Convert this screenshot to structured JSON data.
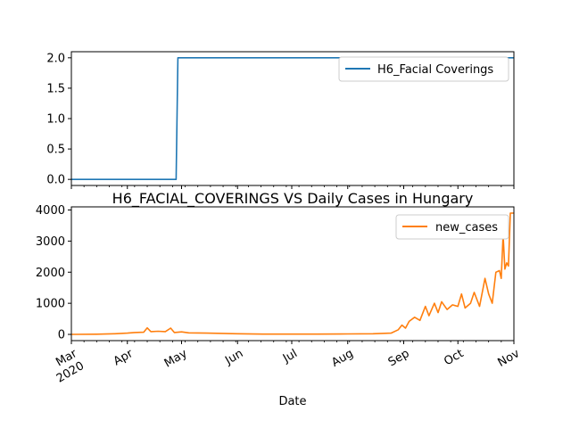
{
  "figure_title": "H6_FACIAL_COVERINGS VS Daily Cases in Hungary",
  "xlabel": "Date",
  "x_tick_labels": [
    {
      "label": "Mar",
      "sub": "2020",
      "date": "2020-03-01"
    },
    {
      "label": "Apr",
      "sub": "",
      "date": "2020-04-01"
    },
    {
      "label": "May",
      "sub": "",
      "date": "2020-05-01"
    },
    {
      "label": "Jun",
      "sub": "",
      "date": "2020-06-01"
    },
    {
      "label": "Jul",
      "sub": "",
      "date": "2020-07-01"
    },
    {
      "label": "Aug",
      "sub": "",
      "date": "2020-08-01"
    },
    {
      "label": "Sep",
      "sub": "",
      "date": "2020-09-01"
    },
    {
      "label": "Oct",
      "sub": "",
      "date": "2020-10-01"
    },
    {
      "label": "Nov",
      "sub": "",
      "date": "2020-11-01"
    }
  ],
  "colors": {
    "series1": "#1f77b4",
    "series2": "#ff7f0e"
  },
  "chart_data": [
    {
      "type": "line",
      "title": "",
      "legend": "top-right",
      "x_range": [
        "2020-03-01",
        "2020-11-01"
      ],
      "ylim": [
        -0.1,
        2.1
      ],
      "y_ticks": [
        "0.0",
        "0.5",
        "1.0",
        "1.5",
        "2.0"
      ],
      "series": [
        {
          "name": "H6_Facial Coverings",
          "points": [
            [
              "2020-03-01",
              0
            ],
            [
              "2020-04-28",
              0
            ],
            [
              "2020-04-29",
              2
            ],
            [
              "2020-11-01",
              2
            ]
          ]
        }
      ]
    },
    {
      "type": "line",
      "title": "H6_FACIAL_COVERINGS VS Daily Cases in Hungary",
      "legend": "top-right",
      "x_range": [
        "2020-03-01",
        "2020-11-01"
      ],
      "ylim": [
        -200,
        4100
      ],
      "y_ticks": [
        "0",
        "1000",
        "2000",
        "3000",
        "4000"
      ],
      "series": [
        {
          "name": "new_cases",
          "points": [
            [
              "2020-03-01",
              0
            ],
            [
              "2020-03-15",
              5
            ],
            [
              "2020-03-25",
              20
            ],
            [
              "2020-04-01",
              40
            ],
            [
              "2020-04-05",
              60
            ],
            [
              "2020-04-10",
              70
            ],
            [
              "2020-04-12",
              210
            ],
            [
              "2020-04-14",
              90
            ],
            [
              "2020-04-18",
              100
            ],
            [
              "2020-04-22",
              90
            ],
            [
              "2020-04-25",
              200
            ],
            [
              "2020-04-27",
              60
            ],
            [
              "2020-05-01",
              80
            ],
            [
              "2020-05-05",
              50
            ],
            [
              "2020-05-15",
              40
            ],
            [
              "2020-06-01",
              20
            ],
            [
              "2020-06-15",
              10
            ],
            [
              "2020-07-01",
              10
            ],
            [
              "2020-07-15",
              10
            ],
            [
              "2020-08-01",
              15
            ],
            [
              "2020-08-15",
              20
            ],
            [
              "2020-08-25",
              40
            ],
            [
              "2020-08-29",
              150
            ],
            [
              "2020-08-31",
              300
            ],
            [
              "2020-09-02",
              200
            ],
            [
              "2020-09-04",
              420
            ],
            [
              "2020-09-07",
              550
            ],
            [
              "2020-09-10",
              450
            ],
            [
              "2020-09-13",
              900
            ],
            [
              "2020-09-15",
              600
            ],
            [
              "2020-09-18",
              1000
            ],
            [
              "2020-09-20",
              700
            ],
            [
              "2020-09-22",
              1050
            ],
            [
              "2020-09-25",
              800
            ],
            [
              "2020-09-28",
              950
            ],
            [
              "2020-10-01",
              900
            ],
            [
              "2020-10-03",
              1300
            ],
            [
              "2020-10-05",
              850
            ],
            [
              "2020-10-08",
              1000
            ],
            [
              "2020-10-10",
              1350
            ],
            [
              "2020-10-13",
              900
            ],
            [
              "2020-10-16",
              1800
            ],
            [
              "2020-10-18",
              1300
            ],
            [
              "2020-10-20",
              1000
            ],
            [
              "2020-10-22",
              2000
            ],
            [
              "2020-10-24",
              2050
            ],
            [
              "2020-10-25",
              1800
            ],
            [
              "2020-10-26",
              3200
            ],
            [
              "2020-10-27",
              2100
            ],
            [
              "2020-10-28",
              2300
            ],
            [
              "2020-10-29",
              2200
            ],
            [
              "2020-10-30",
              3900
            ],
            [
              "2020-11-01",
              3900
            ]
          ]
        }
      ]
    }
  ]
}
